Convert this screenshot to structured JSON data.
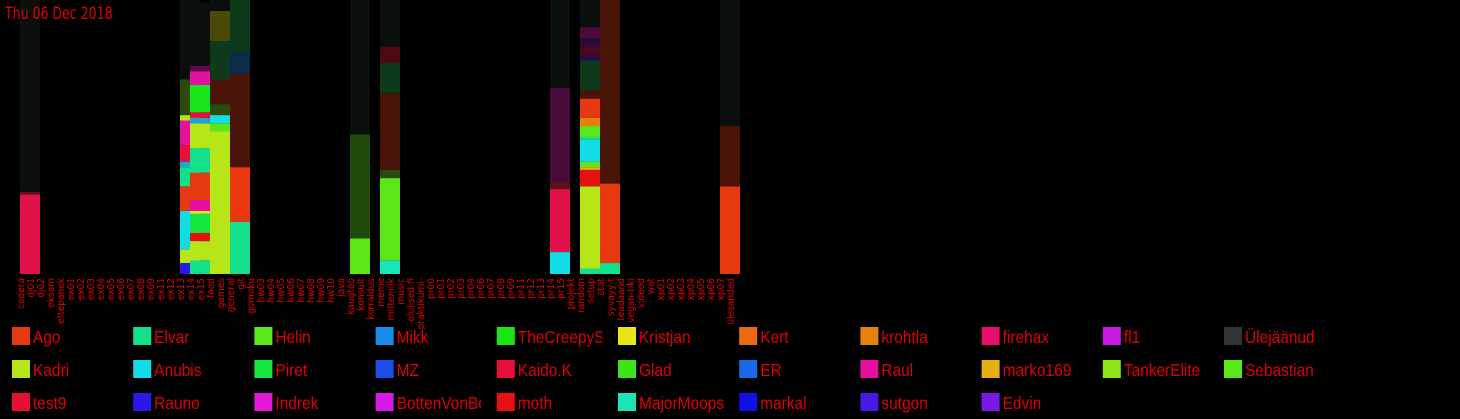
{
  "chart_data": {
    "type": "bar",
    "title": "Thu 06 Dec 2018",
    "colors": {
      "background": "#000000",
      "text": "#e00000",
      "inactive": "#0a0f0c"
    },
    "categories": [
      "codera",
      "dj01",
      "dj02",
      "eksam",
      "ettepanek",
      "ex01",
      "ex02",
      "ex03",
      "ex04",
      "ex05",
      "ex06",
      "ex07",
      "ex08",
      "ex09",
      "ex11",
      "ex12",
      "ex13",
      "ex14",
      "ex15",
      "food",
      "games",
      "general",
      "git",
      "gomoku",
      "hw03",
      "hw04",
      "hw05",
      "hw06",
      "hw07",
      "hw08",
      "hw09",
      "hw10",
      "java",
      "kaugtöö",
      "konsult",
      "korraldus",
      "meme",
      "mitteniiik",
      "music",
      "olulised-fi",
      "praktikumi-",
      "pr00",
      "pr01",
      "pr02",
      "pr03",
      "pr04",
      "pr06",
      "pr07",
      "pr08",
      "pr09",
      "pr11",
      "pr12",
      "pr13",
      "pr14",
      "pr15",
      "projekt",
      "random",
      "setup",
      "stat",
      "syvayy-t",
      "teadaand",
      "vegan-tiki",
      "videod",
      "wat",
      "xp01",
      "xp02",
      "xp03",
      "xp04",
      "xp05",
      "xp06",
      "xp07",
      "ülesanded"
    ],
    "users": [
      {
        "name": "Ago",
        "color": "#e8380f"
      },
      {
        "name": "Elvar",
        "color": "#12e08a"
      },
      {
        "name": "Helin",
        "color": "#5ce61a"
      },
      {
        "name": "Mikk",
        "color": "#1a8ee6"
      },
      {
        "name": "TheCreepySh",
        "color": "#18e618"
      },
      {
        "name": "Kristjan",
        "color": "#e6e618"
      },
      {
        "name": "Kert",
        "color": "#e86a12"
      },
      {
        "name": "krohtla",
        "color": "#e8800e"
      },
      {
        "name": "firehax",
        "color": "#e6106a"
      },
      {
        "name": "fl1",
        "color": "#c818e6"
      },
      {
        "name": "Ülejäänud",
        "color": "#333333"
      },
      {
        "name": "Kadri",
        "color": "#b6e618"
      },
      {
        "name": "Anubis",
        "color": "#12dce6"
      },
      {
        "name": "Piret",
        "color": "#18e640"
      },
      {
        "name": "MZ",
        "color": "#1a4ee6"
      },
      {
        "name": "Kaido.K",
        "color": "#e6103a"
      },
      {
        "name": "Glad",
        "color": "#3ae618"
      },
      {
        "name": "ER",
        "color": "#1a6ae6"
      },
      {
        "name": "Raul",
        "color": "#e610a0"
      },
      {
        "name": "marko169",
        "color": "#e6b012"
      },
      {
        "name": "TankerElite",
        "color": "#8ee618"
      },
      {
        "name": "Sebastian",
        "color": "#5ae618"
      },
      {
        "name": "test9",
        "color": "#e61030"
      },
      {
        "name": "Rauno",
        "color": "#2a18e6"
      },
      {
        "name": "Indrek",
        "color": "#e618d8"
      },
      {
        "name": "BottenVonBot",
        "color": "#d818e6"
      },
      {
        "name": "moth",
        "color": "#e61010"
      },
      {
        "name": "MajorMoopsy",
        "color": "#18e6b8"
      },
      {
        "name": "markal",
        "color": "#1010e6"
      },
      {
        "name": "sutgon",
        "color": "#4a18e6"
      },
      {
        "name": "Edvin",
        "color": "#7a18e6"
      }
    ],
    "ylim": [
      0,
      100
    ],
    "bars": [
      {
        "category": "codera",
        "segments": [
          {
            "value": 29,
            "color": "#e0104a"
          },
          {
            "value": 1,
            "color": "#5a1020"
          }
        ],
        "inactive": 70
      },
      {
        "category": "ex13",
        "segments": [
          {
            "value": 4,
            "color": "#2a18e6"
          },
          {
            "value": 5,
            "color": "#b6e618"
          },
          {
            "value": 14,
            "color": "#12dce6"
          },
          {
            "value": 9,
            "color": "#e8380f"
          },
          {
            "value": 7,
            "color": "#12e08a"
          },
          {
            "value": 2,
            "color": "#12a8d8"
          },
          {
            "value": 6,
            "color": "#e6103a"
          },
          {
            "value": 9,
            "color": "#e610a0"
          },
          {
            "value": 2,
            "color": "#b6e618"
          },
          {
            "value": 13,
            "color": "#2c4a0e"
          }
        ],
        "inactive": 29
      },
      {
        "category": "ex14",
        "segments": [
          {
            "value": 5,
            "color": "#12e08a"
          },
          {
            "value": 7,
            "color": "#b6e618"
          },
          {
            "value": 3,
            "color": "#e61010"
          },
          {
            "value": 7,
            "color": "#18e640"
          },
          {
            "value": 1,
            "color": "#e6e618"
          },
          {
            "value": 4,
            "color": "#e610a0"
          },
          {
            "value": 10,
            "color": "#e8380f"
          },
          {
            "value": 9,
            "color": "#12e08a"
          },
          {
            "value": 9,
            "color": "#b6e618"
          },
          {
            "value": 2,
            "color": "#12a8d8"
          },
          {
            "value": 2,
            "color": "#e6103a"
          },
          {
            "value": 10,
            "color": "#18e618"
          },
          {
            "value": 5,
            "color": "#e610a0"
          },
          {
            "value": 2,
            "color": "#5a0a4a"
          }
        ],
        "inactive": 23
      },
      {
        "category": "food",
        "segments": [
          {
            "value": 52,
            "color": "#b6e618"
          },
          {
            "value": 3,
            "color": "#5ae618"
          },
          {
            "value": 3,
            "color": "#12dce6"
          },
          {
            "value": 4,
            "color": "#2c4a0e"
          },
          {
            "value": 9,
            "color": "#4a1408"
          },
          {
            "value": 14,
            "color": "#0c3a1a"
          },
          {
            "value": 11,
            "color": "#4a4a08"
          }
        ],
        "inactive": 4
      },
      {
        "category": "general",
        "segments": [
          {
            "value": 19,
            "color": "#12e08a"
          },
          {
            "value": 20,
            "color": "#e8380f"
          },
          {
            "value": 34,
            "color": "#4a1408"
          },
          {
            "value": 8,
            "color": "#0c2a4a"
          },
          {
            "value": 19,
            "color": "#0c3a1a"
          }
        ],
        "inactive": 0
      },
      {
        "category": "kaugtöö",
        "segments": [
          {
            "value": 13,
            "color": "#5ae618"
          },
          {
            "value": 38,
            "color": "#1e4a0c"
          }
        ],
        "inactive": 49
      },
      {
        "category": "meme",
        "segments": [
          {
            "value": 5,
            "color": "#18e6b8"
          },
          {
            "value": 30,
            "color": "#5ae618"
          },
          {
            "value": 3,
            "color": "#2c4a0e"
          },
          {
            "value": 28,
            "color": "#4a1408"
          },
          {
            "value": 11,
            "color": "#0c3a1a"
          },
          {
            "value": 6,
            "color": "#4a0a10"
          }
        ],
        "inactive": 17
      },
      {
        "category": "pr14",
        "segments": [
          {
            "value": 8,
            "color": "#12dce6"
          },
          {
            "value": 23,
            "color": "#e0104a"
          },
          {
            "value": 3,
            "color": "#5a1020"
          },
          {
            "value": 34,
            "color": "#4a0a3a"
          }
        ],
        "inactive": 32
      },
      {
        "category": "random",
        "segments": [
          {
            "value": 2,
            "color": "#12e08a"
          },
          {
            "value": 30,
            "color": "#b6e618"
          },
          {
            "value": 6,
            "color": "#e61010"
          },
          {
            "value": 1,
            "color": "#e6b012"
          },
          {
            "value": 2,
            "color": "#5ae618"
          },
          {
            "value": 8,
            "color": "#12dce6"
          },
          {
            "value": 1,
            "color": "#12e08a"
          },
          {
            "value": 4,
            "color": "#5ae618"
          },
          {
            "value": 3,
            "color": "#e8800e"
          },
          {
            "value": 7,
            "color": "#e8380f"
          },
          {
            "value": 3,
            "color": "#4a1408"
          },
          {
            "value": 11,
            "color": "#0c3a1a"
          },
          {
            "value": 2,
            "color": "#2a0a4a"
          },
          {
            "value": 3,
            "color": "#4a0a1a"
          },
          {
            "value": 3,
            "color": "#2a0a3a"
          },
          {
            "value": 5,
            "color": "#4a0a3a"
          }
        ],
        "inactive": 10
      },
      {
        "category": "stat",
        "segments": [
          {
            "value": 4,
            "color": "#12e08a"
          },
          {
            "value": 29,
            "color": "#e8380f"
          },
          {
            "value": 67,
            "color": "#4a1408"
          }
        ],
        "inactive": 0
      },
      {
        "category": "xp07",
        "segments": [
          {
            "value": 32,
            "color": "#e8380f"
          },
          {
            "value": 22,
            "color": "#4a1408"
          }
        ],
        "inactive": 46
      }
    ]
  }
}
